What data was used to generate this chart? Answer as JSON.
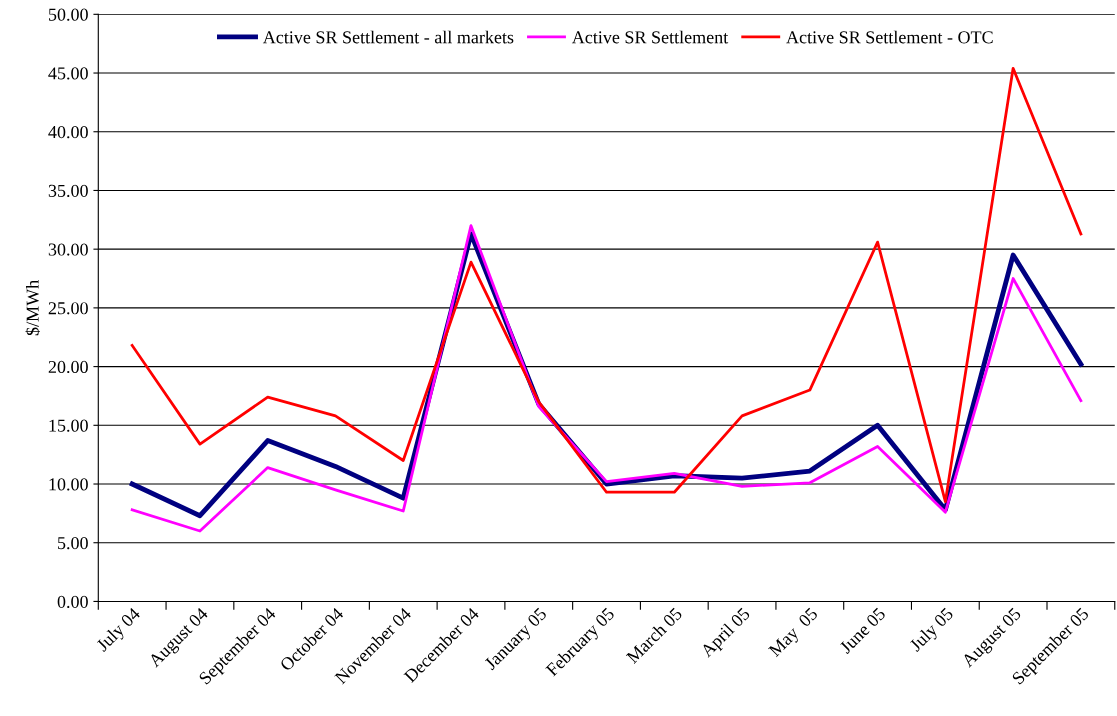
{
  "chart_data": {
    "type": "line",
    "ylabel": "$/MWh",
    "categories": [
      "July 04",
      "August 04",
      "September 04",
      "October 04",
      "November 04",
      "December 04",
      "January 05",
      "February 05",
      "March 05",
      "April 05",
      "May  05",
      "June 05",
      "July 05",
      "August 05",
      "September 05"
    ],
    "series": [
      {
        "name": "Active SR Settlement - all markets",
        "color": "#000080",
        "values": [
          10.0,
          7.3,
          13.7,
          11.5,
          8.8,
          31.3,
          16.8,
          10.0,
          10.7,
          10.5,
          11.1,
          15.0,
          7.8,
          29.5,
          20.2
        ]
      },
      {
        "name": "Active SR Settlement",
        "color": "#ff00ff",
        "values": [
          7.8,
          6.0,
          11.4,
          9.5,
          7.7,
          32.0,
          16.6,
          10.2,
          10.9,
          9.8,
          10.1,
          13.2,
          7.6,
          27.5,
          17.1
        ]
      },
      {
        "name": "Active SR Settlement - OTC",
        "color": "#ff0000",
        "values": [
          21.8,
          13.4,
          17.4,
          15.8,
          12.0,
          28.9,
          17.0,
          9.3,
          9.3,
          15.8,
          18.0,
          30.6,
          8.5,
          45.4,
          31.3
        ]
      }
    ],
    "ylim": [
      0,
      50
    ],
    "yticks": [
      {
        "value": 0,
        "label": "0.00"
      },
      {
        "value": 5,
        "label": "5.00"
      },
      {
        "value": 10,
        "label": "10.00"
      },
      {
        "value": 15,
        "label": "15.00"
      },
      {
        "value": 20,
        "label": "20.00"
      },
      {
        "value": 25,
        "label": "25.00"
      },
      {
        "value": 30,
        "label": "30.00"
      },
      {
        "value": 35,
        "label": "35.00"
      },
      {
        "value": 40,
        "label": "40.00"
      },
      {
        "value": 45,
        "label": "45.00"
      },
      {
        "value": 50,
        "label": "50.00"
      }
    ],
    "grid": "y",
    "legend": "top",
    "marker": "none",
    "line_style": "solid"
  }
}
